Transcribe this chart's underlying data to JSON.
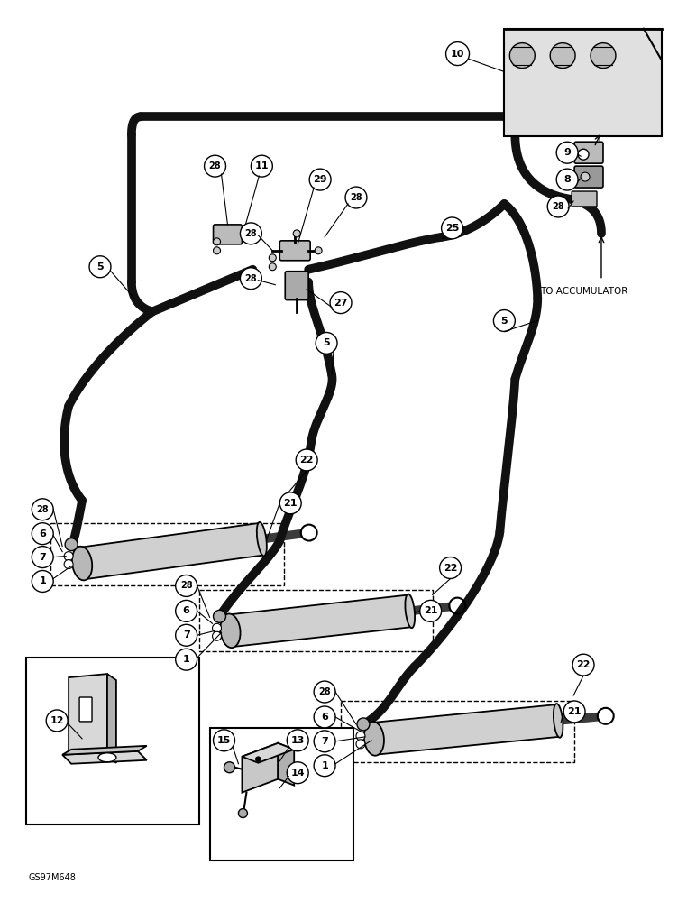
{
  "background_color": "#ffffff",
  "footer_text": "GS97M648",
  "accumulator_text": "TO ACCUMULATOR",
  "hose_lw": 7,
  "hose_color": "#111111",
  "label_color": "#000000",
  "box_color": "#ffffff"
}
